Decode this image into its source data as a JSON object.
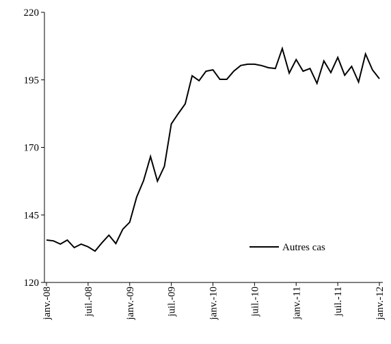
{
  "chart_data": {
    "type": "line",
    "categories": [
      "janv.-08",
      null,
      null,
      null,
      null,
      null,
      "juil.-08",
      null,
      null,
      null,
      null,
      null,
      "janv.-09",
      null,
      null,
      null,
      null,
      null,
      "juil.-09",
      null,
      null,
      null,
      null,
      null,
      "janv.-10",
      null,
      null,
      null,
      null,
      null,
      "juil.-10",
      null,
      null,
      null,
      null,
      null,
      "janv.-11",
      null,
      null,
      null,
      null,
      null,
      "juil.-11",
      null,
      null,
      null,
      null,
      null,
      "janv.-12"
    ],
    "series": [
      {
        "name": "Autres cas",
        "color": "#000000",
        "values": [
          135.7,
          135.4,
          134.2,
          135.7,
          132.9,
          134.2,
          133.2,
          131.6,
          134.7,
          137.5,
          134.4,
          139.7,
          142.3,
          151.6,
          157.7,
          166.6,
          157.5,
          163,
          178.7,
          182.5,
          186.1,
          196.5,
          194.7,
          198.2,
          198.7,
          195.2,
          195.2,
          198.2,
          200.3,
          200.8,
          200.8,
          200.3,
          199.5,
          199.2,
          206.6,
          197.5,
          202.5,
          198.2,
          199.2,
          193.7,
          202,
          197.7,
          203.3,
          196.7,
          200,
          194.2,
          204.6,
          198.7,
          195.4
        ]
      }
    ],
    "ylim": [
      120,
      220
    ],
    "yticks": [
      120,
      145,
      170,
      195,
      220
    ],
    "grid": false,
    "legend": "lower right"
  }
}
